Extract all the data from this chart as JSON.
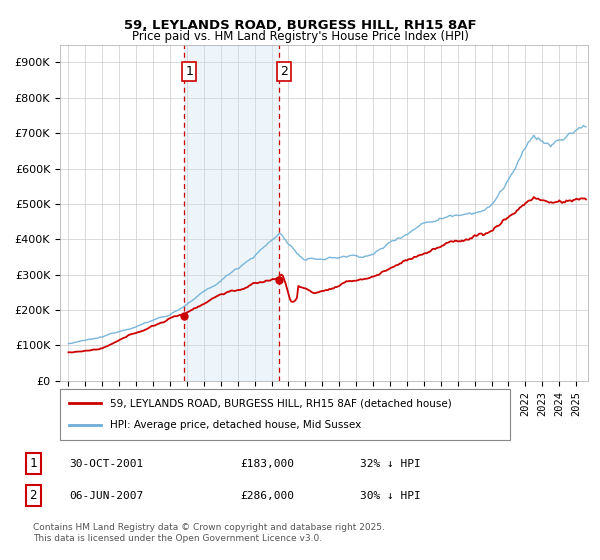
{
  "title": "59, LEYLANDS ROAD, BURGESS HILL, RH15 8AF",
  "subtitle": "Price paid vs. HM Land Registry's House Price Index (HPI)",
  "legend_line1": "59, LEYLANDS ROAD, BURGESS HILL, RH15 8AF (detached house)",
  "legend_line2": "HPI: Average price, detached house, Mid Sussex",
  "footnote": "Contains HM Land Registry data © Crown copyright and database right 2025.\nThis data is licensed under the Open Government Licence v3.0.",
  "purchases": [
    {
      "num": 1,
      "date": "30-OCT-2001",
      "price": 183000,
      "pct": "32%",
      "direction": "↓",
      "label": "HPI"
    },
    {
      "num": 2,
      "date": "06-JUN-2007",
      "price": 286000,
      "pct": "30%",
      "direction": "↓",
      "label": "HPI"
    }
  ],
  "purchase_dates_decimal": [
    2001.83,
    2007.43
  ],
  "purchase_prices": [
    183000,
    286000
  ],
  "shaded_region": [
    2001.83,
    2007.43
  ],
  "ylim": [
    0,
    950000
  ],
  "yticks": [
    0,
    100000,
    200000,
    300000,
    400000,
    500000,
    600000,
    700000,
    800000,
    900000
  ],
  "hpi_color": "#6baed6",
  "price_color": "#cc0000",
  "shade_color": "#c6dbef",
  "vline_color": "#cc0000",
  "background_color": "#ffffff",
  "grid_color": "#cccccc",
  "xlim_start": 1994.5,
  "xlim_end": 2025.7
}
